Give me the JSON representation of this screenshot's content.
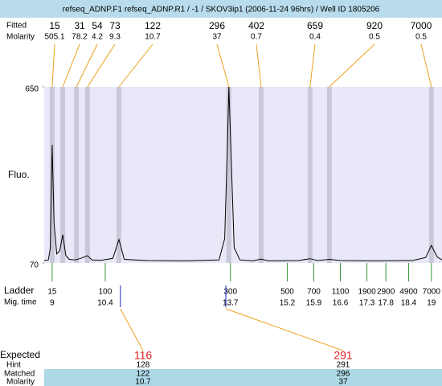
{
  "chart_data": {
    "type": "line",
    "title": "refseq_ADNP.F1  refseq_ADNP.R1  / -1 / SKOV3ip1 (2006-11-24 96hrs) / Well ID 1805206",
    "y_label": "Fluo.",
    "ylim": [
      70,
      650
    ],
    "yticks": [
      70,
      650
    ],
    "xlim": [
      8.79,
      19.28
    ],
    "series": [
      {
        "color": "#000000",
        "x": [
          8.79,
          8.9,
          8.95,
          9.0,
          9.05,
          9.12,
          9.2,
          9.28,
          9.36,
          9.45,
          9.6,
          9.75,
          9.93,
          10.05,
          10.3,
          10.6,
          10.76,
          10.9,
          11.5,
          12.5,
          13.4,
          13.55,
          13.62,
          13.66,
          13.72,
          13.8,
          13.95,
          14.3,
          14.51,
          14.7,
          15.5,
          15.8,
          16.0,
          16.31,
          16.6,
          17.5,
          18.5,
          18.85,
          19.0,
          19.15,
          19.28
        ],
        "values": [
          78,
          80,
          120,
          459,
          200,
          100,
          110,
          163,
          95,
          82,
          80,
          85,
          94,
          80,
          79,
          85,
          147,
          82,
          78,
          77,
          80,
          150,
          450,
          650,
          420,
          120,
          80,
          77,
          83,
          77,
          78,
          84,
          78,
          82,
          78,
          77,
          78,
          88,
          128,
          90,
          80
        ]
      }
    ],
    "peaks": {
      "size_label": "Fitted",
      "molarity_label": "Molarity",
      "sizes": [
        15,
        31,
        54,
        73,
        122,
        296,
        402,
        659,
        920,
        7000
      ],
      "molarity": [
        505.1,
        78.2,
        4.2,
        9.3,
        10.7,
        37,
        0.7,
        0.4,
        0.5,
        0.5
      ],
      "times": [
        9.0,
        9.28,
        9.64,
        9.93,
        10.76,
        13.66,
        14.51,
        15.8,
        16.31,
        19.0
      ]
    },
    "ladder": {
      "size_label": "Ladder",
      "time_label": "Mig. time",
      "sizes": [
        15,
        100,
        300,
        500,
        700,
        1100,
        1900,
        2900,
        4900,
        7000
      ],
      "times": [
        9,
        10.4,
        13.7,
        15.2,
        15.9,
        16.6,
        17.3,
        17.8,
        18.4,
        19
      ]
    },
    "expected": {
      "expected_label": "Expected",
      "hint_label": "Hint",
      "matched_label": "Matched",
      "molarity_label": "Molarity",
      "values": [
        116,
        291
      ],
      "hint": [
        128,
        291
      ],
      "matched": [
        122,
        296
      ],
      "molarity": [
        10.7,
        37
      ],
      "times": [
        10.8,
        13.58
      ]
    }
  }
}
